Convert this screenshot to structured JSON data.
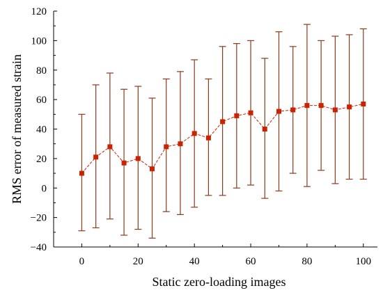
{
  "chart_data": {
    "type": "scatter",
    "xlabel": "Static zero-loading images",
    "ylabel": "RMS error of measured strain",
    "xlim": [
      -10,
      105
    ],
    "ylim": [
      -40,
      120
    ],
    "xticks": [
      0,
      20,
      40,
      60,
      80,
      100
    ],
    "yticks": [
      -40,
      -20,
      0,
      20,
      40,
      60,
      80,
      100,
      120
    ],
    "grid": false,
    "series": [
      {
        "x": [
          0,
          5,
          10,
          15,
          20,
          25,
          30,
          35,
          40,
          45,
          50,
          55,
          60,
          65,
          70,
          75,
          80,
          85,
          90,
          95,
          100
        ],
        "y": [
          10,
          21,
          28,
          17,
          20,
          13,
          28,
          30,
          37,
          34,
          45,
          49,
          51,
          40,
          52,
          53,
          56,
          56,
          53,
          55,
          57
        ],
        "y_upper": [
          50,
          70,
          78,
          67,
          69,
          61,
          74,
          79,
          87,
          74,
          96,
          98,
          100,
          88,
          106,
          96,
          111,
          100,
          103,
          104,
          108
        ],
        "y_lower": [
          -29,
          -27,
          -21,
          -32,
          -28,
          -34,
          -16,
          -18,
          -13,
          -5,
          -5,
          0,
          2,
          -7,
          -2,
          10,
          1,
          12,
          3,
          6,
          6
        ]
      }
    ],
    "colors": {
      "marker": "#cc2200",
      "line": "#cc2200",
      "error_bar": "#8b3a1a"
    }
  }
}
